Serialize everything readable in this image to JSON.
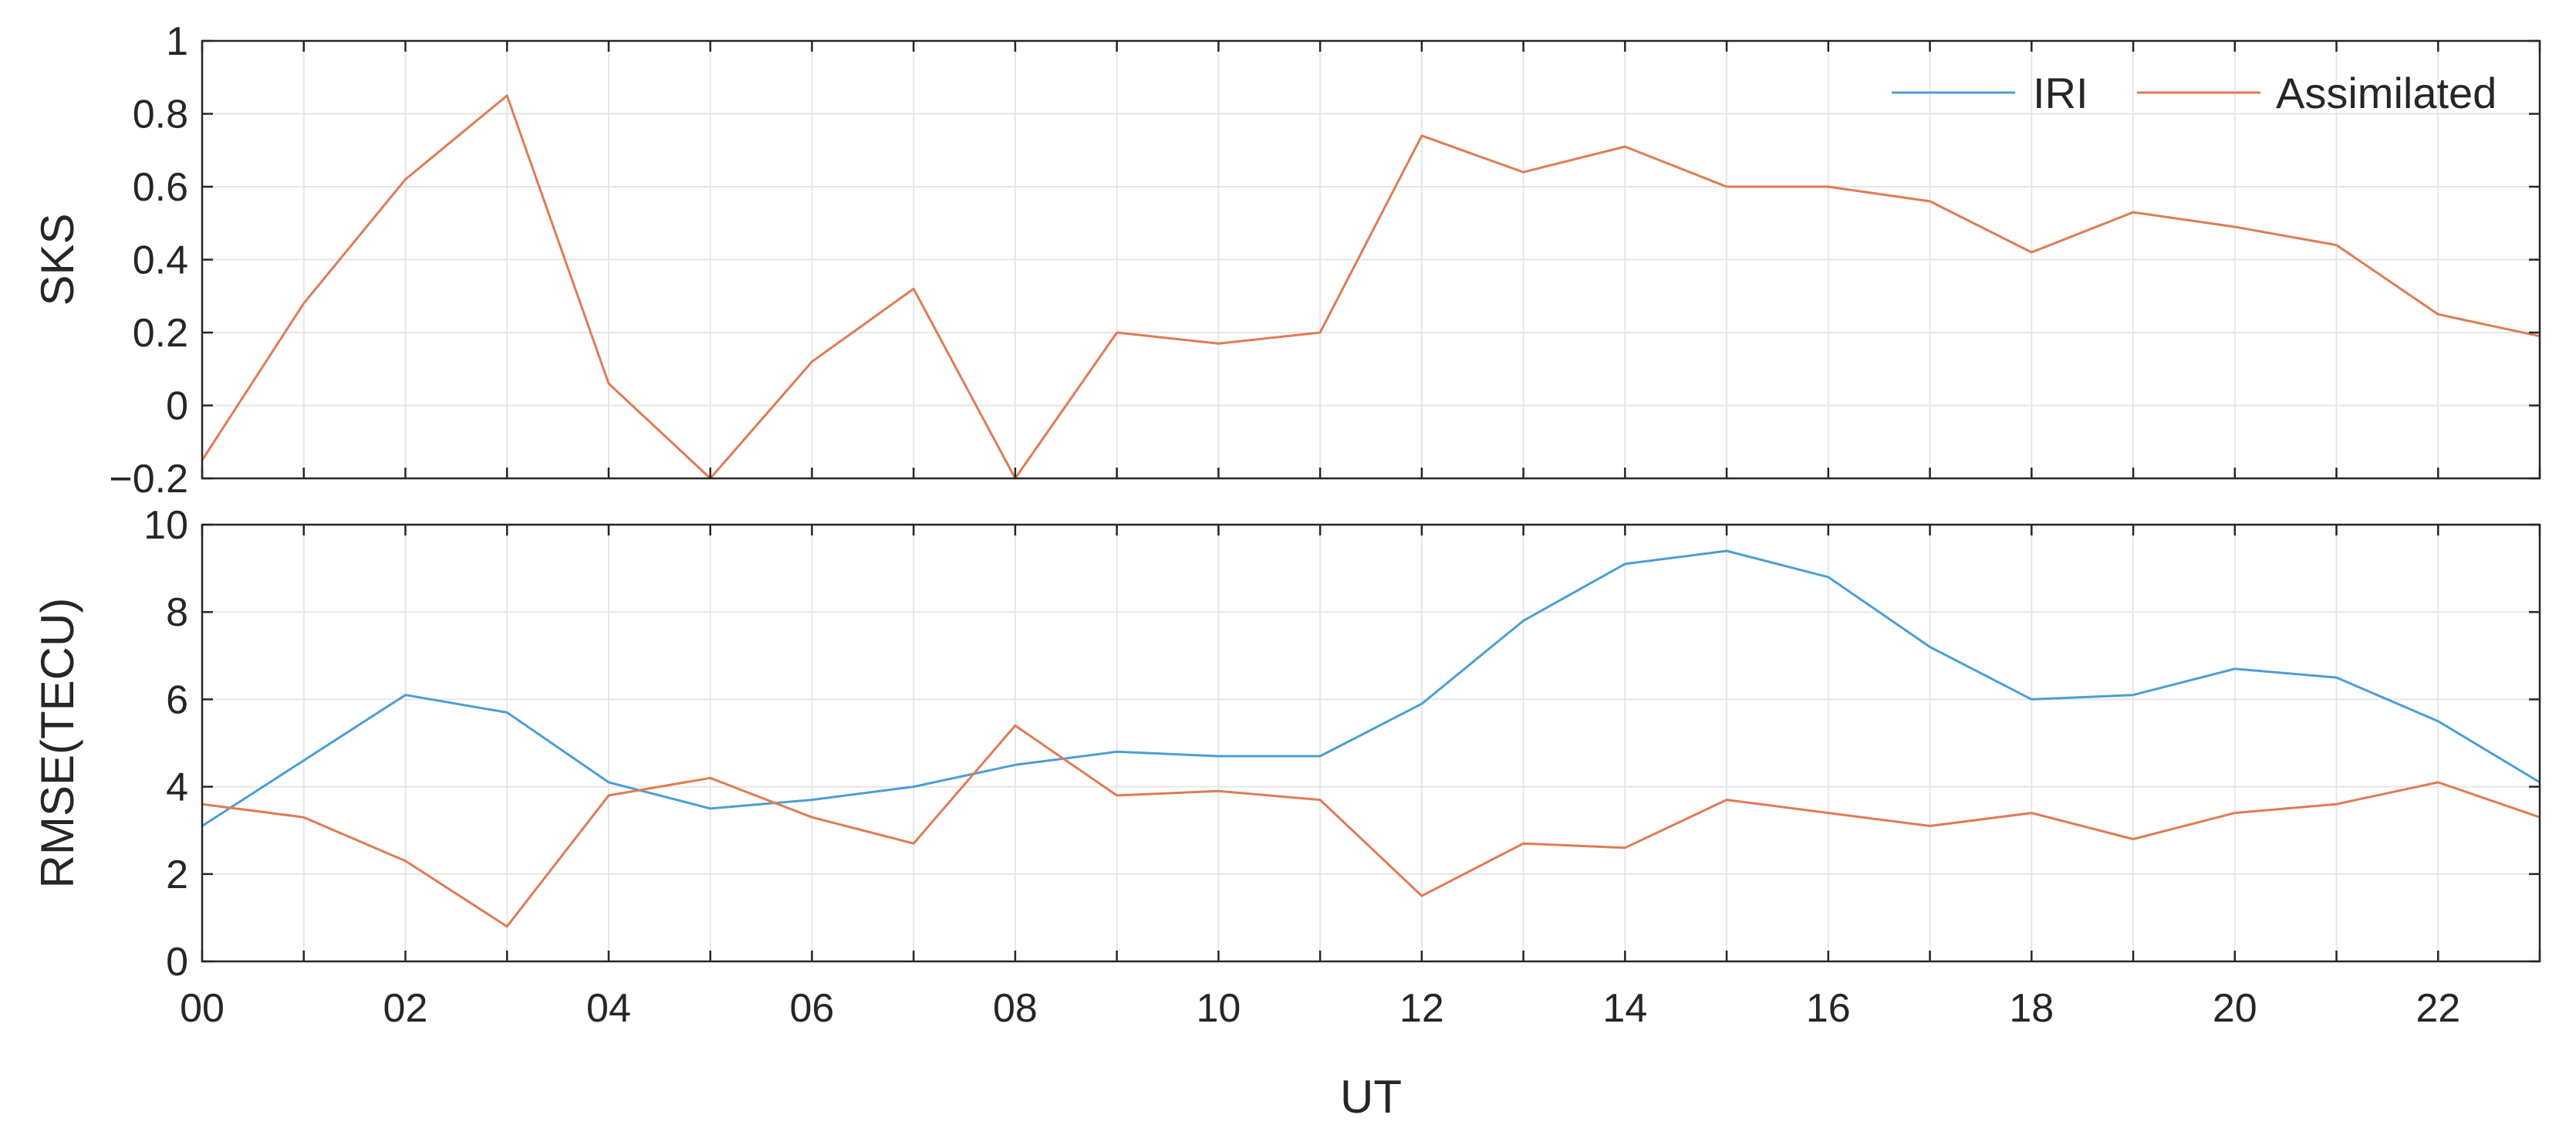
{
  "chart_data": {
    "type": "line",
    "xlabel": "UT",
    "x": [
      0,
      1,
      2,
      3,
      4,
      5,
      6,
      7,
      8,
      9,
      10,
      11,
      12,
      13,
      14,
      15,
      16,
      17,
      18,
      19,
      20,
      21,
      22,
      23
    ],
    "x_tick_labels": [
      "00",
      "02",
      "04",
      "06",
      "08",
      "10",
      "12",
      "14",
      "16",
      "18",
      "20",
      "22"
    ],
    "x_tick_values": [
      0,
      2,
      4,
      6,
      8,
      10,
      12,
      14,
      16,
      18,
      20,
      22
    ],
    "xlim": [
      0,
      23
    ],
    "grid": true,
    "legend": {
      "placement": "top-right",
      "entries": [
        "IRI",
        "Assimilated"
      ]
    },
    "colors": {
      "IRI": "#4a9fd4",
      "Assimilated": "#e07b54"
    },
    "panels": [
      {
        "ylabel": "SKS",
        "ylim": [
          -0.2,
          1
        ],
        "y_ticks": [
          -0.2,
          0,
          0.2,
          0.4,
          0.6,
          0.8,
          1
        ],
        "y_tick_labels": [
          "−0.2",
          "0",
          "0.2",
          "0.4",
          "0.6",
          "0.8",
          "1"
        ],
        "series": [
          {
            "name": "Assimilated",
            "values": [
              -0.15,
              0.28,
              0.62,
              0.85,
              0.06,
              -0.2,
              0.12,
              0.32,
              -0.2,
              0.2,
              0.17,
              0.2,
              0.74,
              0.64,
              0.71,
              0.6,
              0.6,
              0.56,
              0.42,
              0.53,
              0.49,
              0.44,
              0.25,
              0.19
            ]
          }
        ]
      },
      {
        "ylabel": "RMSE(TECU)",
        "ylim": [
          0,
          10
        ],
        "y_ticks": [
          0,
          2,
          4,
          6,
          8,
          10
        ],
        "y_tick_labels": [
          "0",
          "2",
          "4",
          "6",
          "8",
          "10"
        ],
        "series": [
          {
            "name": "IRI",
            "values": [
              3.1,
              4.6,
              6.1,
              5.7,
              4.1,
              3.5,
              3.7,
              4.0,
              4.5,
              4.8,
              4.7,
              4.7,
              5.9,
              7.8,
              9.1,
              9.4,
              8.8,
              7.2,
              6.0,
              6.1,
              6.7,
              6.5,
              5.5,
              4.1
            ]
          },
          {
            "name": "Assimilated",
            "values": [
              3.6,
              3.3,
              2.3,
              0.8,
              3.8,
              4.2,
              3.3,
              2.7,
              5.4,
              3.8,
              3.9,
              3.7,
              1.5,
              2.7,
              2.6,
              3.7,
              3.4,
              3.1,
              3.4,
              2.8,
              3.4,
              3.6,
              4.1,
              3.3
            ]
          }
        ]
      }
    ]
  }
}
